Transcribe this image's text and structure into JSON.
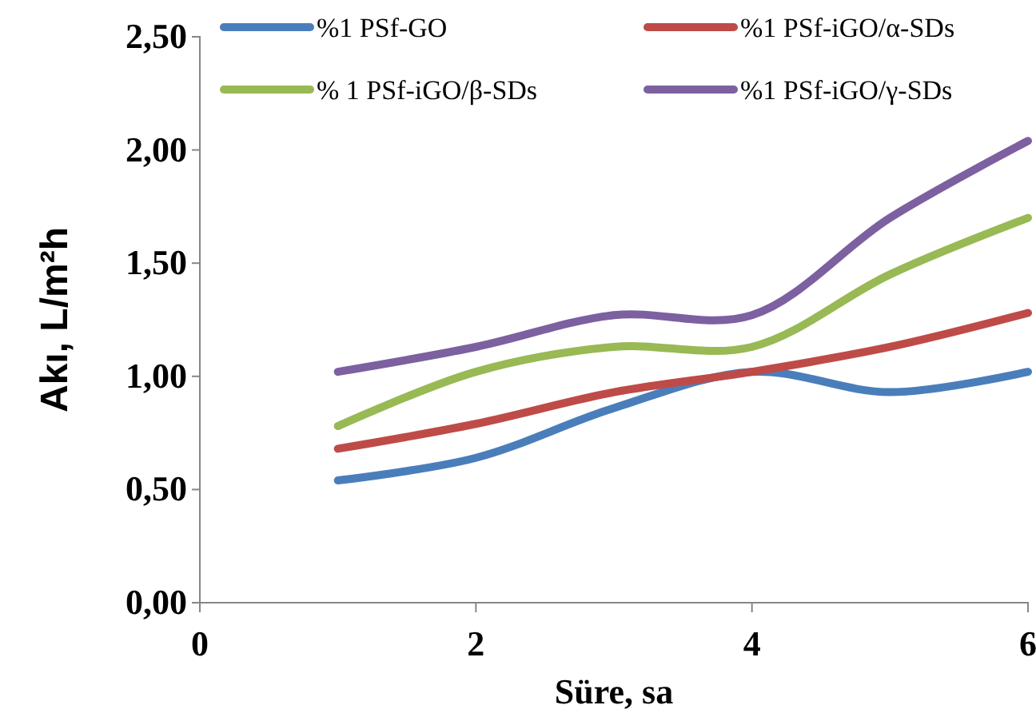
{
  "chart_data": {
    "type": "line",
    "xlabel": "Süre, sa",
    "ylabel": "Akı, L/m²h",
    "x": [
      1,
      2,
      3,
      4,
      5,
      6
    ],
    "series": [
      {
        "name": "%1 PSf-GO",
        "color": "#4a7ebb",
        "values": [
          0.54,
          0.64,
          0.86,
          1.02,
          0.93,
          1.02
        ]
      },
      {
        "name": "%1 PSf-iGO/α-SDs",
        "color": "#be4b48",
        "values": [
          0.68,
          0.79,
          0.93,
          1.02,
          1.13,
          1.28
        ]
      },
      {
        "name": "% 1 PSf-iGO/β-SDs",
        "color": "#98b954",
        "values": [
          0.78,
          1.02,
          1.13,
          1.13,
          1.45,
          1.7
        ]
      },
      {
        "name": "%1 PSf-iGO/γ-SDs",
        "color": "#7d60a0",
        "values": [
          1.02,
          1.13,
          1.27,
          1.27,
          1.7,
          2.04
        ]
      }
    ],
    "xlim": [
      0,
      6
    ],
    "xticks": [
      0,
      2,
      4,
      6
    ],
    "ylim": [
      0,
      2.5
    ],
    "yticks": [
      {
        "value": 0,
        "label": "0,00"
      },
      {
        "value": 0.5,
        "label": "0,50"
      },
      {
        "value": 1,
        "label": "1,00"
      },
      {
        "value": 1.5,
        "label": "1,50"
      },
      {
        "value": 2,
        "label": "2,00"
      },
      {
        "value": 2.5,
        "label": "2,50"
      }
    ],
    "grid": false,
    "legend": "top",
    "marker": "none",
    "line_style": "solid"
  }
}
